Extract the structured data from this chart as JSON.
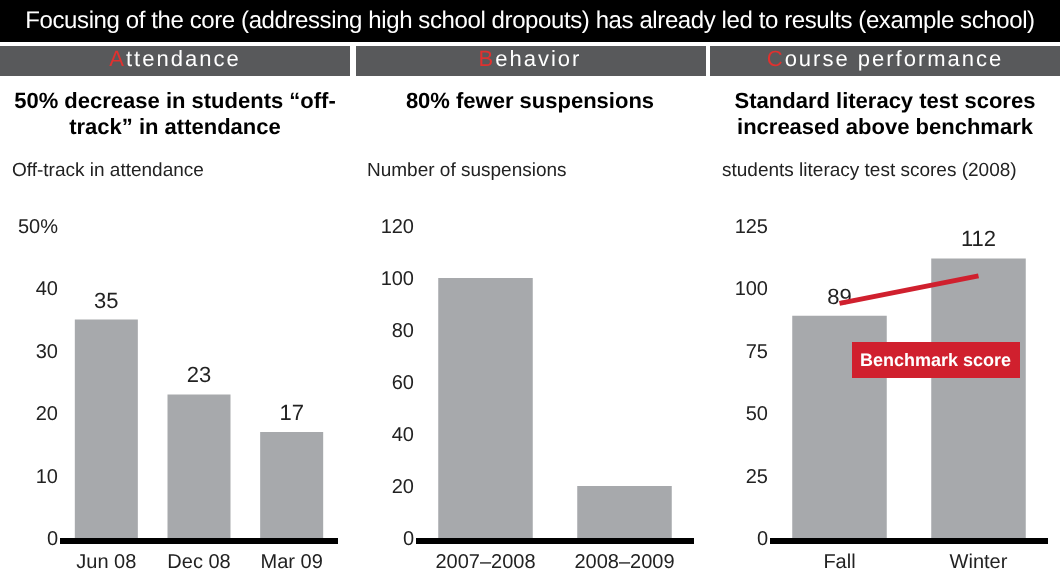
{
  "chart_data": [
    {
      "type": "bar",
      "title": "Attendance",
      "subtitle": "50% decrease in students “off-track” in attendance",
      "ylabel": "Off-track in attendance",
      "annotations": [
        "Focusing of the core (addressing high school dropouts) has already led to results (example school)"
      ],
      "categories": [
        "Jun 08",
        "Dec 08",
        "Mar 09"
      ],
      "values": [
        35,
        23,
        17
      ],
      "color": "#a7a9ac",
      "data_labels": true,
      "ylim": [
        0,
        50
      ],
      "yticks": [
        0,
        10,
        20,
        30,
        40,
        {
          "value": 50,
          "label": "50%"
        }
      ]
    },
    {
      "type": "bar",
      "title": "Behavior",
      "subtitle": "80% fewer suspensions",
      "ylabel": "Number of suspensions",
      "categories": [
        "2007–2008",
        "2008–2009"
      ],
      "values": [
        100,
        20
      ],
      "color": "#a7a9ac",
      "ylim": [
        0,
        120
      ],
      "yticks": [
        0,
        20,
        40,
        60,
        80,
        100,
        120
      ]
    },
    {
      "type": "bar",
      "title": "Course performance",
      "subtitle": "Standard literacy test scores increased above benchmark",
      "ylabel": "students literacy test scores (2008)",
      "annotations": [
        "Benchmark score"
      ],
      "categories": [
        "Fall",
        "Winter"
      ],
      "series": [
        {
          "color": "#a7a9ac",
          "values": [
            89,
            112
          ],
          "value_labels": [
            "89",
            "112"
          ]
        },
        {
          "type": "line",
          "color": "#d0202e",
          "values": [
            94,
            105
          ]
        }
      ],
      "ylim": [
        0,
        125
      ],
      "yticks": [
        0,
        25,
        50,
        75,
        100,
        125
      ]
    }
  ]
}
